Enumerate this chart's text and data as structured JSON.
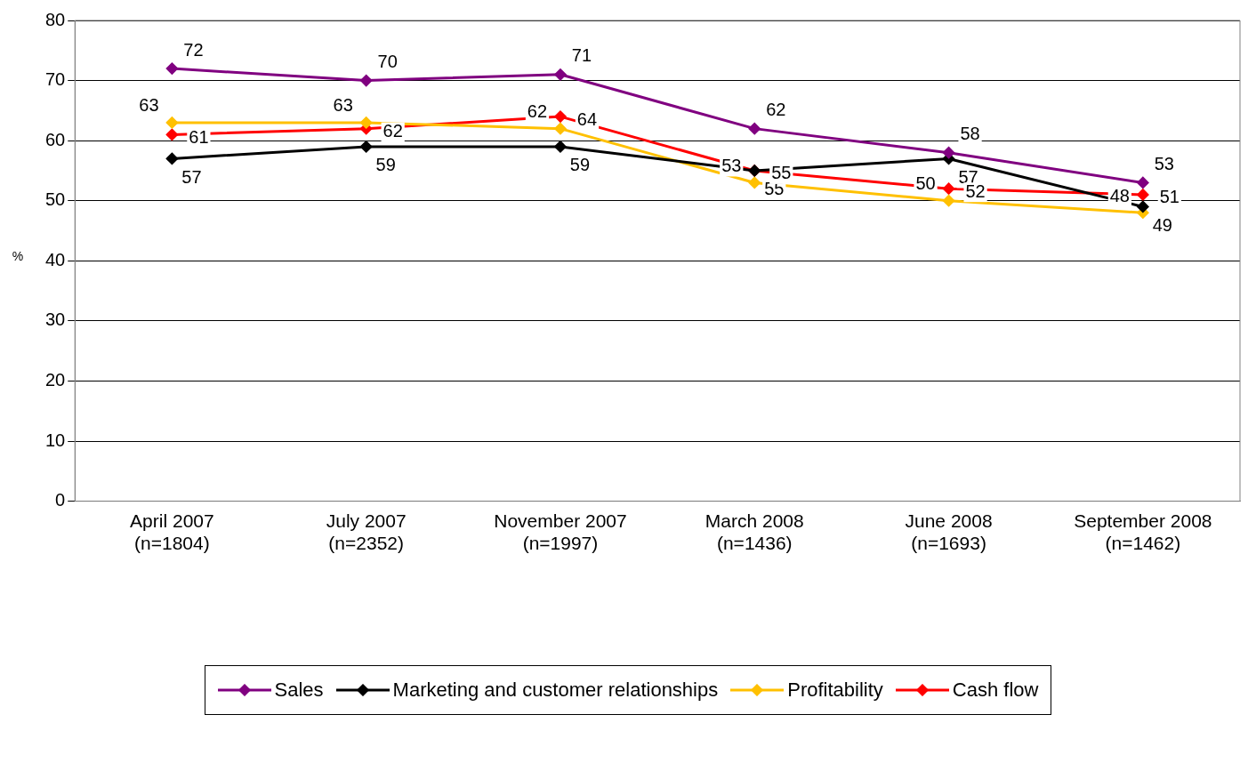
{
  "chart_data": {
    "type": "line",
    "ylabel": "%",
    "categories": [
      "April 2007\n(n=1804)",
      "July 2007\n(n=2352)",
      "November 2007\n(n=1997)",
      "March 2008\n(n=1436)",
      "June 2008\n(n=1693)",
      "September 2008\n(n=1462)"
    ],
    "series": [
      {
        "name": "Sales",
        "color": "#800080",
        "values": [
          72,
          70,
          71,
          62,
          58,
          53
        ]
      },
      {
        "name": "Marketing and customer relationships",
        "color": "#000000",
        "values": [
          57,
          59,
          59,
          55,
          57,
          49
        ]
      },
      {
        "name": "Profitability",
        "color": "#ffc000",
        "values": [
          63,
          63,
          62,
          53,
          50,
          48
        ]
      },
      {
        "name": "Cash flow",
        "color": "#ff0000",
        "values": [
          61,
          62,
          64,
          55,
          52,
          51
        ]
      }
    ],
    "ylim": [
      0,
      80
    ],
    "yticks": [
      0,
      10,
      20,
      30,
      40,
      50,
      60,
      70,
      80
    ],
    "grid": "y",
    "legend": "bottom",
    "marker": "diamond",
    "line_style": "solid",
    "data_labels": true
  }
}
